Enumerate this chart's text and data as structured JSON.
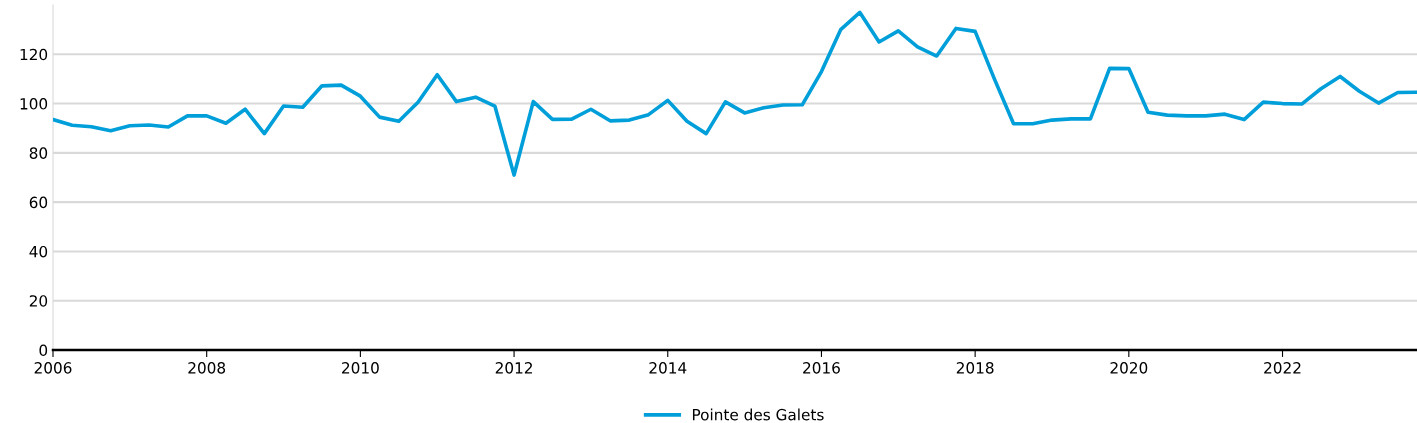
{
  "chart_data": {
    "type": "line",
    "x": [
      2006.0,
      2006.25,
      2006.5,
      2006.75,
      2007.0,
      2007.25,
      2007.5,
      2007.75,
      2008.0,
      2008.25,
      2008.5,
      2008.75,
      2009.0,
      2009.25,
      2009.5,
      2009.75,
      2010.0,
      2010.25,
      2010.5,
      2010.75,
      2011.0,
      2011.25,
      2011.5,
      2011.75,
      2012.0,
      2012.25,
      2012.5,
      2012.75,
      2013.0,
      2013.25,
      2013.5,
      2013.75,
      2014.0,
      2014.25,
      2014.5,
      2014.75,
      2015.0,
      2015.25,
      2015.5,
      2015.75,
      2016.0,
      2016.25,
      2016.5,
      2016.75,
      2017.0,
      2017.25,
      2017.5,
      2017.75,
      2018.0,
      2018.25,
      2018.5,
      2018.75,
      2019.0,
      2019.25,
      2019.5,
      2019.75,
      2020.0,
      2020.25,
      2020.5,
      2020.75,
      2021.0,
      2021.25,
      2021.5,
      2021.75,
      2022.0,
      2022.25,
      2022.5,
      2022.75,
      2023.0,
      2023.25,
      2023.5,
      2023.75
    ],
    "series": [
      {
        "name": "Pointe des Galets",
        "color": "#009fda",
        "values": [
          93.5,
          91.2,
          90.6,
          89,
          91,
          91.3,
          90.5,
          95,
          95,
          92,
          97.7,
          87.8,
          99,
          98.5,
          107.2,
          107.5,
          103,
          94.5,
          92.8,
          100.5,
          111.7,
          100.8,
          102.6,
          99,
          71,
          100.8,
          93.6,
          93.7,
          97.7,
          93,
          93.3,
          95.5,
          101.3,
          92.8,
          87.8,
          100.7,
          96.2,
          98.3,
          99.4,
          99.5,
          113,
          130,
          137,
          125,
          129.5,
          123,
          119.3,
          130.5,
          129.3,
          110,
          91.8,
          91.8,
          93.3,
          93.8,
          93.8,
          114.3,
          114.2,
          96.5,
          95.3,
          95,
          95,
          95.7,
          93.5,
          100.6,
          100,
          99.8,
          106,
          111,
          105,
          100.2,
          104.5,
          104.6
        ]
      }
    ],
    "xlim": [
      2006,
      2023.75
    ],
    "xticks": [
      2006,
      2008,
      2010,
      2012,
      2014,
      2016,
      2018,
      2020,
      2022
    ],
    "ylim": [
      0,
      140
    ],
    "yticks": [
      0,
      20,
      40,
      60,
      80,
      100,
      120
    ],
    "grid": "y",
    "legend": "bottom",
    "marker": "none",
    "line_style": "solid"
  }
}
